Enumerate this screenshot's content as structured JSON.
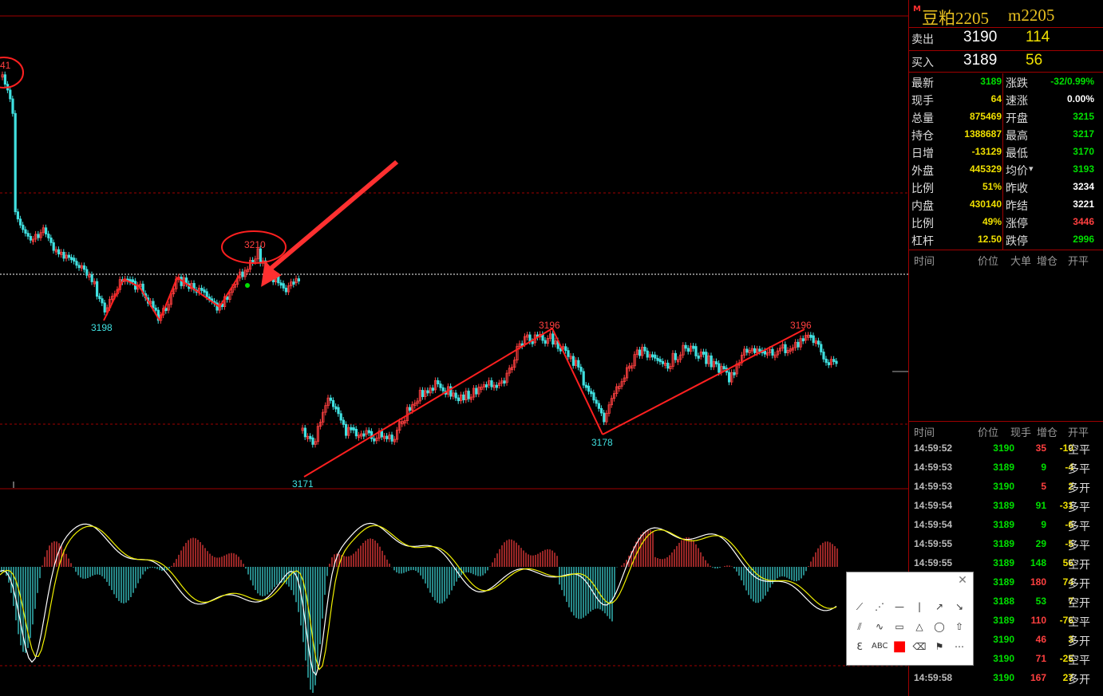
{
  "colors": {
    "up": "#ff4040",
    "down": "#40e0e0",
    "grid": "#a00000",
    "trend": "#ff2020",
    "dif": "#ffffff",
    "dea": "#f0f000",
    "accent": "#e8c020",
    "green": "#00e000"
  },
  "chart_annotations": {
    "peak_labels": [
      "41",
      "3210",
      "3196",
      "3196"
    ],
    "trough_labels": [
      "3198",
      "3171",
      "3178"
    ]
  },
  "quote": {
    "badge": "M",
    "name": "豆粕2205",
    "code": "m2205",
    "sell": {
      "label": "卖出",
      "price": "3190",
      "volume": "114"
    },
    "buy": {
      "label": "买入",
      "price": "3189",
      "volume": "56"
    },
    "stats_left": [
      {
        "k": "最新",
        "v": "3189",
        "color": "#00e000"
      },
      {
        "k": "现手",
        "v": "64",
        "color": "#f0e000"
      },
      {
        "k": "总量",
        "v": "875469",
        "color": "#f0e000"
      },
      {
        "k": "持仓",
        "v": "1388687",
        "color": "#f0e000"
      },
      {
        "k": "日增",
        "v": "-13129",
        "color": "#f0e000"
      },
      {
        "k": "外盘",
        "v": "445329",
        "color": "#f0e000"
      },
      {
        "k": "比例",
        "v": "51%",
        "color": "#f0e000"
      },
      {
        "k": "内盘",
        "v": "430140",
        "color": "#f0e000"
      },
      {
        "k": "比例",
        "v": "49%",
        "color": "#f0e000"
      },
      {
        "k": "杠杆",
        "v": "12.50",
        "color": "#f0e000"
      }
    ],
    "stats_right": [
      {
        "k": "涨跌",
        "v": "-32/0.99%",
        "color": "#00e000"
      },
      {
        "k": "速涨",
        "v": "0.00%",
        "color": "#ffffff"
      },
      {
        "k": "开盘",
        "v": "3215",
        "color": "#00e000"
      },
      {
        "k": "最高",
        "v": "3217",
        "color": "#00e000"
      },
      {
        "k": "最低",
        "v": "3170",
        "color": "#00e000"
      },
      {
        "k": "均价",
        "v": "3193",
        "color": "#00e000"
      },
      {
        "k": "昨收",
        "v": "3234",
        "color": "#ffffff"
      },
      {
        "k": "昨结",
        "v": "3221",
        "color": "#ffffff"
      },
      {
        "k": "涨停",
        "v": "3446",
        "color": "#ff4040"
      },
      {
        "k": "跌停",
        "v": "2996",
        "color": "#00e000"
      }
    ],
    "big_order_header": [
      "时间",
      "价位",
      "大单",
      "增仓",
      "开平"
    ],
    "tick_header": [
      "时间",
      "价位",
      "现手",
      "增仓",
      "开平"
    ],
    "ticks": [
      {
        "t": "14:59:52",
        "p": "3190",
        "n": "35",
        "c": "-10",
        "o": "空平",
        "nc": "#ff4040"
      },
      {
        "t": "14:59:53",
        "p": "3189",
        "n": "9",
        "c": "-4",
        "o": "多平",
        "nc": "#00e000"
      },
      {
        "t": "14:59:53",
        "p": "3190",
        "n": "5",
        "c": "2",
        "o": "多开",
        "nc": "#ff4040"
      },
      {
        "t": "14:59:54",
        "p": "3189",
        "n": "91",
        "c": "-31",
        "o": "多平",
        "nc": "#00e000"
      },
      {
        "t": "14:59:54",
        "p": "3189",
        "n": "9",
        "c": "-6",
        "o": "多平",
        "nc": "#00e000"
      },
      {
        "t": "14:59:55",
        "p": "3189",
        "n": "29",
        "c": "-5",
        "o": "多平",
        "nc": "#00e000"
      },
      {
        "t": "14:59:55",
        "p": "3189",
        "n": "148",
        "c": "56",
        "o": "空开",
        "nc": "#00e000"
      },
      {
        "t": "",
        "p": "3189",
        "n": "180",
        "c": "74",
        "o": "多开",
        "nc": "#ff4040"
      },
      {
        "t": "",
        "p": "3188",
        "n": "53",
        "c": "7",
        "o": "空开",
        "nc": "#00e000"
      },
      {
        "t": "",
        "p": "3189",
        "n": "110",
        "c": "-76",
        "o": "空平",
        "nc": "#ff4040"
      },
      {
        "t": "",
        "p": "3190",
        "n": "46",
        "c": "3",
        "o": "多开",
        "nc": "#ff4040"
      },
      {
        "t": "",
        "p": "3190",
        "n": "71",
        "c": "-25",
        "o": "空平",
        "nc": "#ff4040"
      },
      {
        "t": "14:59:58",
        "p": "3190",
        "n": "167",
        "c": "27",
        "o": "多开",
        "nc": "#ff4040"
      }
    ]
  },
  "toolbox": {
    "close": "✕",
    "tools": [
      {
        "name": "line-icon",
        "g": "⟋"
      },
      {
        "name": "ray-dashed-icon",
        "g": "⋰"
      },
      {
        "name": "horizontal-line-icon",
        "g": "—"
      },
      {
        "name": "vertical-line-icon",
        "g": "|"
      },
      {
        "name": "arrow-up-right-icon",
        "g": "↗"
      },
      {
        "name": "arrow-down-right-icon",
        "g": "↘"
      },
      {
        "name": "parallel-lines-icon",
        "g": "⫽"
      },
      {
        "name": "zigzag-icon",
        "g": "∿"
      },
      {
        "name": "rectangle-icon",
        "g": "▭"
      },
      {
        "name": "triangle-icon",
        "g": "△"
      },
      {
        "name": "ellipse-icon",
        "g": "◯"
      },
      {
        "name": "up-arrow-icon",
        "g": "⇧"
      },
      {
        "name": "fib-icon",
        "g": "Ɛ"
      },
      {
        "name": "text-icon",
        "g": "ABC"
      },
      {
        "name": "color-picker-icon",
        "g": "■"
      },
      {
        "name": "eraser-icon",
        "g": "⌫"
      },
      {
        "name": "flag-icon",
        "g": "⚑"
      },
      {
        "name": "more-icon",
        "g": "⋯"
      }
    ]
  }
}
